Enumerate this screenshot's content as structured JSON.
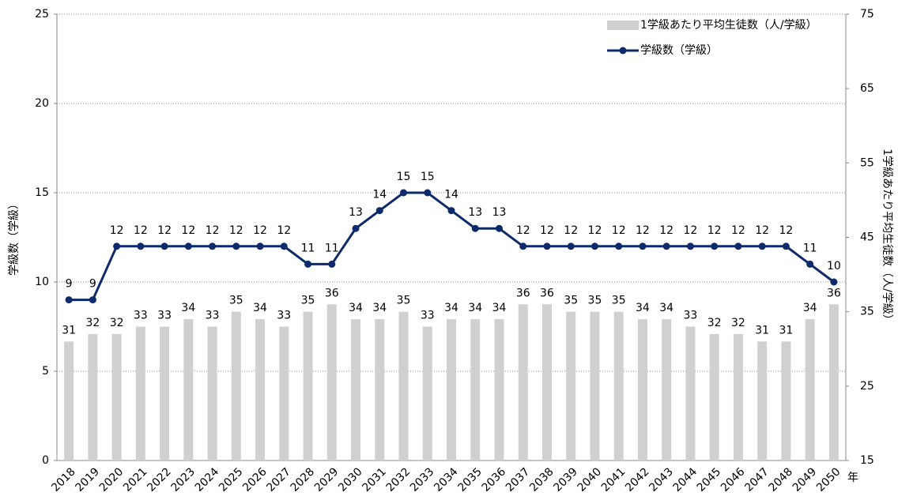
{
  "chart_data": {
    "type": "bar_line",
    "categories": [
      "2018",
      "2019",
      "2020",
      "2021",
      "2022",
      "2023",
      "2024",
      "2025",
      "2026",
      "2027",
      "2028",
      "2029",
      "2030",
      "2031",
      "2032",
      "2033",
      "2034",
      "2035",
      "2036",
      "2037",
      "2038",
      "2039",
      "2040",
      "2041",
      "2042",
      "2043",
      "2044",
      "2045",
      "2046",
      "2047",
      "2048",
      "2049",
      "2050"
    ],
    "x_unit": "年",
    "ylabel": "学級数（学級）",
    "y2label": "1学級あたり平均生徒数（人/学級）",
    "ylim": [
      0,
      25
    ],
    "yticks": [
      0,
      5,
      10,
      15,
      20,
      25
    ],
    "y2lim": [
      15,
      75
    ],
    "y2ticks": [
      15,
      25,
      35,
      45,
      55,
      65,
      75
    ],
    "grid": true,
    "legend": "upper right",
    "series": [
      {
        "name": "1学級あたり平均生徒数（人/学級）",
        "type": "bar",
        "axis": "y2",
        "color": "#d0d0d0",
        "values": [
          31,
          32,
          32,
          33,
          33,
          34,
          33,
          35,
          34,
          33,
          35,
          36,
          34,
          34,
          35,
          33,
          34,
          34,
          34,
          36,
          36,
          35,
          35,
          35,
          34,
          34,
          33,
          32,
          32,
          31,
          31,
          34,
          36
        ]
      },
      {
        "name": "学級数（学級）",
        "type": "line",
        "axis": "y",
        "color": "#0d2a6b",
        "values": [
          9,
          9,
          12,
          12,
          12,
          12,
          12,
          12,
          12,
          12,
          11,
          11,
          13,
          14,
          15,
          15,
          14,
          13,
          13,
          12,
          12,
          12,
          12,
          12,
          12,
          12,
          12,
          12,
          12,
          12,
          12,
          11,
          10
        ]
      }
    ]
  }
}
